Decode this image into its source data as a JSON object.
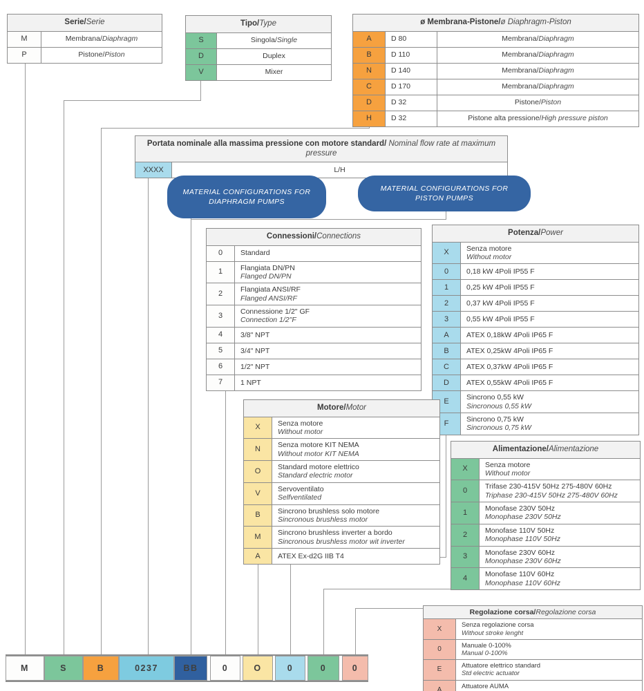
{
  "palette": {
    "green": "#7cc69b",
    "orange": "#f6a13f",
    "light_blue": "#a9dbec",
    "cyan": "#7ecbe0",
    "dark_blue": "#30609f",
    "yellow": "#fae5a4",
    "pink": "#f4bcac",
    "box_blue": "#3565a3",
    "header_bg": "#f2f2f2",
    "border": "#8c8c8c"
  },
  "material_boxes": [
    {
      "label": "MATERIAL CONFIGURATIONS FOR DIAPHRAGM PUMPS"
    },
    {
      "label": "MATERIAL CONFIGURATIONS FOR PISTON PUMPS"
    }
  ],
  "tables": {
    "serie": {
      "title_it": "Serie/",
      "title_en": "Serie",
      "color": "white",
      "layout": "inline",
      "rows": [
        {
          "code": "M",
          "it": "Membrana/",
          "en": " Diaphragm"
        },
        {
          "code": "P",
          "it": "Pistone/",
          "en": " Piston"
        }
      ]
    },
    "tipo": {
      "title_it": "Tipo/",
      "title_en": "Type",
      "color": "green",
      "layout": "inline",
      "rows": [
        {
          "code": "S",
          "it": "Singola/",
          "en": "Single"
        },
        {
          "code": "D",
          "it": "Duplex"
        },
        {
          "code": "V",
          "it": "Mixer"
        }
      ]
    },
    "diametro": {
      "title_it": "ø Membrana-Pistone/",
      "title_en": "ø Diaphragm-Piston",
      "color": "orange",
      "layout": "inline",
      "rows": [
        {
          "code": "A",
          "mid": "D 80",
          "it": "Membrana/",
          "en": "Diaphragm"
        },
        {
          "code": "B",
          "mid": "D 110",
          "it": "Membrana/",
          "en": "Diaphragm"
        },
        {
          "code": "N",
          "mid": "D 140",
          "it": "Membrana/",
          "en": "Diaphragm"
        },
        {
          "code": "C",
          "mid": "D 170",
          "it": "Membrana/",
          "en": "Diaphragm"
        },
        {
          "code": "D",
          "mid": "D 32",
          "it": "Pistone/",
          "en": "Piston"
        },
        {
          "code": "H",
          "mid": "D 32",
          "it": "Pistone alta pressione/",
          "en": "High pressure piston"
        }
      ]
    },
    "portata": {
      "title_it": "Portata nominale alla massima pressione con motore standard/",
      "title_en": " Nominal flow rate at maximum pressure",
      "color": "lblue",
      "layout": "inline",
      "rows": [
        {
          "code": "XXXX",
          "it": "L/H"
        }
      ]
    },
    "connessioni": {
      "title_it": "Connessioni/",
      "title_en": "Connections",
      "color": "white",
      "layout": "stack",
      "rows": [
        {
          "code": "0",
          "it": "Standard"
        },
        {
          "code": "1",
          "it": "Flangiata DN/PN",
          "en": "Flanged DN/PN"
        },
        {
          "code": "2",
          "it": "Flangiata ANSI/RF",
          "en": "Flanged ANSI/RF"
        },
        {
          "code": "3",
          "it": "Connessione 1/2\" GF",
          "en": "Connection 1/2\"F"
        },
        {
          "code": "4",
          "it": "3/8\" NPT"
        },
        {
          "code": "5",
          "it": "3/4\" NPT"
        },
        {
          "code": "6",
          "it": "1/2\" NPT"
        },
        {
          "code": "7",
          "it": "1 NPT"
        }
      ]
    },
    "potenza": {
      "title_it": "Potenza/",
      "title_en": "Power",
      "color": "lblue",
      "layout": "stack",
      "rows": [
        {
          "code": "X",
          "it": "Senza motore",
          "en": "Without motor"
        },
        {
          "code": "0",
          "it": "0,18 kW 4Poli IP55 F"
        },
        {
          "code": "1",
          "it": "0,25 kW 4Poli IP55 F"
        },
        {
          "code": "2",
          "it": "0,37 kW 4Poli IP55 F"
        },
        {
          "code": "3",
          "it": "0,55 kW 4Poli IP55 F"
        },
        {
          "code": "A",
          "it": "ATEX 0,18kW 4Poli IP65 F"
        },
        {
          "code": "B",
          "it": "ATEX 0,25kW 4Poli IP65 F"
        },
        {
          "code": "C",
          "it": "ATEX 0,37kW 4Poli IP65 F"
        },
        {
          "code": "D",
          "it": "ATEX 0,55kW 4Poli IP65 F"
        },
        {
          "code": "E",
          "it": "Sincrono 0,55 kW",
          "en": "Sincronous 0,55 kW"
        },
        {
          "code": "F",
          "it": "Sincrono 0,75 kW",
          "en": "Sincronous 0,75 kW"
        }
      ]
    },
    "motore": {
      "title_it": "Motore/",
      "title_en": "Motor",
      "color": "yellow",
      "layout": "stack",
      "rows": [
        {
          "code": "X",
          "it": "Senza motore",
          "en": "Without motor"
        },
        {
          "code": "N",
          "it": "Senza motore KIT NEMA",
          "en": "Without motor KIT NEMA"
        },
        {
          "code": "O",
          "it": "Standard motore elettrico",
          "en": "Standard electric motor"
        },
        {
          "code": "V",
          "it": "Servoventilato",
          "en": "Selfventilated"
        },
        {
          "code": "B",
          "it": "Sincrono brushless solo motore",
          "en": "Sincronous brushless motor"
        },
        {
          "code": "M",
          "it": "Sincrono brushless inverter a bordo",
          "en": "Sincronous brushless motor wit inverter"
        },
        {
          "code": "A",
          "it": "ATEX Ex-d2G IIB T4"
        }
      ]
    },
    "alimentazione": {
      "title_it": "Alimentazione/",
      "title_en": "Alimentazione",
      "color": "green",
      "layout": "stack",
      "rows": [
        {
          "code": "X",
          "it": "Senza motore",
          "en": "Without motor"
        },
        {
          "code": "0",
          "it": "Trifase 230-415V 50Hz 275-480V 60Hz",
          "en": "Triphase 230-415V 50Hz 275-480V 60Hz"
        },
        {
          "code": "1",
          "it": "Monofase 230V 50Hz",
          "en": "Monophase 230V 50Hz"
        },
        {
          "code": "2",
          "it": "Monofase 110V 50Hz",
          "en": "Monophase 110V 50Hz"
        },
        {
          "code": "3",
          "it": "Monofase 230V 60Hz",
          "en": "Monophase 230V 60Hz"
        },
        {
          "code": "4",
          "it": "Monofase 110V 60Hz",
          "en": "Monophase 110V 60Hz"
        }
      ]
    },
    "regolazione": {
      "title_it": "Regolazione corsa/",
      "title_en": "Regolazione corsa",
      "color": "pink",
      "layout": "stack",
      "rows": [
        {
          "code": "X",
          "it": "Senza regolazione corsa",
          "en": "Without stroke lenght"
        },
        {
          "code": "0",
          "it": "Manuale 0-100%",
          "en": "Manual 0-100%"
        },
        {
          "code": "E",
          "it": "Attuatore elettrico standard",
          "en": "Std electric actuator"
        },
        {
          "code": "A",
          "it": "Attuatore AUMA",
          "en": "AUMA actuator"
        }
      ]
    }
  },
  "code_row": [
    {
      "value": "M",
      "color": "white"
    },
    {
      "value": "S",
      "color": "green"
    },
    {
      "value": "B",
      "color": "orange"
    },
    {
      "value": "0237",
      "color": "cyan"
    },
    {
      "value": "BB",
      "color": "dblue"
    },
    {
      "value": "0",
      "color": "white"
    },
    {
      "value": "O",
      "color": "yellow"
    },
    {
      "value": "0",
      "color": "lblue"
    },
    {
      "value": "0",
      "color": "green"
    },
    {
      "value": "0",
      "color": "pink"
    }
  ]
}
